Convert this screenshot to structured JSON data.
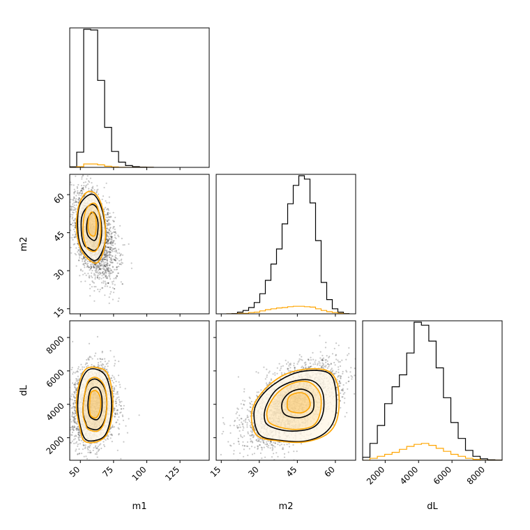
{
  "colors": {
    "primary": "#000000",
    "secondary": "#ffa500",
    "background": "#ffffff"
  },
  "chart_data": {
    "type": "corner",
    "parameters": [
      "m1",
      "m2",
      "dL"
    ],
    "axes": {
      "m1": {
        "label": "m1",
        "lim": [
          42,
          147
        ],
        "ticks": [
          50,
          75,
          100,
          125
        ],
        "tick_labels": [
          "50",
          "75",
          "100",
          "125"
        ]
      },
      "m2": {
        "label": "m2",
        "lim": [
          13,
          68
        ],
        "ticks": [
          15,
          30,
          45,
          60
        ],
        "tick_labels": [
          "15",
          "30",
          "45",
          "60"
        ]
      },
      "dL": {
        "label": "dL",
        "lim": [
          650,
          9000
        ],
        "ticks": [
          2000,
          4000,
          6000,
          8000
        ],
        "tick_labels": [
          "2000",
          "4000",
          "6000",
          "8000"
        ]
      }
    },
    "series": [
      {
        "color": "#000000"
      },
      {
        "color": "#ffa500"
      }
    ],
    "histograms": {
      "m1": {
        "bin_edges": [
          42,
          47.25,
          52.5,
          57.75,
          63,
          68.25,
          73.5,
          78.75,
          84,
          89.25,
          94.5,
          99.75,
          105
        ],
        "black": [
          4,
          110,
          1000,
          995,
          630,
          290,
          115,
          38,
          13,
          5,
          2,
          1
        ],
        "orange": [
          0,
          5,
          25,
          25,
          18,
          8,
          3,
          1,
          0,
          0,
          0,
          0
        ]
      },
      "m2": {
        "bin_edges": [
          17,
          19.2,
          21.4,
          23.6,
          25.8,
          28,
          30.2,
          32.4,
          34.6,
          36.8,
          39,
          41.2,
          43.4,
          45.6,
          47.8,
          50,
          52.2,
          54.4,
          56.6,
          58.8,
          61,
          63.2,
          65.4
        ],
        "black": [
          0,
          0.5,
          4,
          8,
          15,
          27,
          48,
          80,
          119,
          155,
          215,
          263,
          307,
          330,
          322,
          265,
          175,
          75,
          34,
          12,
          4,
          0.5
        ],
        "orange": [
          0,
          0,
          1,
          1,
          3,
          4,
          7,
          10,
          12,
          14,
          15,
          17,
          18,
          18,
          17,
          16,
          12,
          8,
          5,
          3,
          1,
          0
        ]
      },
      "dL": {
        "bin_edges": [
          650,
          1090,
          1530,
          1970,
          2410,
          2850,
          3290,
          3730,
          4170,
          4610,
          5050,
          5490,
          5930,
          6370,
          6810,
          7250,
          7690,
          8130,
          8570,
          9010
        ],
        "black": [
          3,
          17,
          35,
          57,
          74,
          86,
          108,
          139,
          136,
          120,
          93,
          63,
          38,
          22,
          10,
          4,
          1.5,
          0.5,
          0.2
        ],
        "orange": [
          0,
          2,
          4,
          6,
          8,
          11,
          14,
          16,
          17,
          15,
          12,
          9,
          6,
          4,
          2,
          1,
          0,
          0,
          0
        ]
      }
    },
    "scatter": {
      "m2_vs_m1": {
        "x_mean": 60,
        "x_sd": 8,
        "y_mean": 44,
        "y_sd": 8.5,
        "rho": -0.45,
        "count": 2600
      },
      "dL_vs_m1": {
        "x_mean": 60,
        "x_sd": 8,
        "y_mean": 3900,
        "y_sd": 1150,
        "rho": 0.1,
        "count": 2600
      },
      "dL_vs_m2": {
        "x_mean": 43,
        "x_sd": 9,
        "y_mean": 4000,
        "y_sd": 1200,
        "rho": 0.55,
        "count": 3000
      }
    },
    "contours": {
      "m2_vs_m1": {
        "black": [
          [
            [
              55,
              36
            ],
            [
              61,
              34
            ],
            [
              66,
              37
            ],
            [
              69,
              43
            ],
            [
              68,
              50
            ],
            [
              65,
              56
            ],
            [
              60,
              60
            ],
            [
              54,
              59
            ],
            [
              49,
              55
            ],
            [
              48,
              47
            ],
            [
              50,
              40
            ]
          ],
          [
            [
              56,
              39
            ],
            [
              61,
              38
            ],
            [
              65,
              41
            ],
            [
              66,
              47
            ],
            [
              64,
              53
            ],
            [
              60,
              56
            ],
            [
              55,
              55
            ],
            [
              51,
              51
            ],
            [
              51,
              44
            ],
            [
              53,
              40
            ]
          ],
          [
            [
              57,
              43
            ],
            [
              61,
              42
            ],
            [
              63,
              45
            ],
            [
              63,
              50
            ],
            [
              60,
              53
            ],
            [
              57,
              52
            ],
            [
              55,
              49
            ],
            [
              55,
              45
            ]
          ]
        ],
        "orange": [
          [
            [
              55,
              35
            ],
            [
              62,
              33
            ],
            [
              67,
              37
            ],
            [
              69,
              45
            ],
            [
              67,
              54
            ],
            [
              62,
              60
            ],
            [
              55,
              61
            ],
            [
              49,
              56
            ],
            [
              47,
              47
            ],
            [
              50,
              39
            ]
          ],
          [
            [
              57,
              38
            ],
            [
              62,
              38
            ],
            [
              65,
              43
            ],
            [
              65,
              50
            ],
            [
              62,
              56
            ],
            [
              57,
              56
            ],
            [
              53,
              52
            ],
            [
              52,
              45
            ],
            [
              54,
              40
            ]
          ],
          [
            [
              58,
              44
            ],
            [
              61,
              44
            ],
            [
              62,
              48
            ],
            [
              61,
              52
            ],
            [
              58,
              53
            ],
            [
              56,
              50
            ],
            [
              56,
              46
            ]
          ]
        ]
      },
      "dL_vs_m1": {
        "black": [
          [
            [
              54,
              1900
            ],
            [
              62,
              1850
            ],
            [
              69,
              2200
            ],
            [
              73,
              3300
            ],
            [
              73,
              4600
            ],
            [
              69,
              5700
            ],
            [
              62,
              6100
            ],
            [
              55,
              6000
            ],
            [
              50,
              5200
            ],
            [
              48,
              3900
            ],
            [
              50,
              2700
            ]
          ],
          [
            [
              56,
              2600
            ],
            [
              63,
              2500
            ],
            [
              68,
              3000
            ],
            [
              70,
              4000
            ],
            [
              68,
              5000
            ],
            [
              62,
              5500
            ],
            [
              56,
              5300
            ],
            [
              53,
              4500
            ],
            [
              52,
              3500
            ],
            [
              54,
              2900
            ]
          ],
          [
            [
              58,
              3200
            ],
            [
              63,
              3100
            ],
            [
              66,
              3600
            ],
            [
              66,
              4500
            ],
            [
              63,
              5000
            ],
            [
              58,
              4900
            ],
            [
              56,
              4300
            ],
            [
              56,
              3600
            ]
          ]
        ],
        "orange": [
          [
            [
              53,
              1800
            ],
            [
              62,
              1750
            ],
            [
              70,
              2200
            ],
            [
              74,
              3400
            ],
            [
              74,
              4700
            ],
            [
              70,
              5900
            ],
            [
              62,
              6200
            ],
            [
              54,
              6100
            ],
            [
              49,
              5200
            ],
            [
              47,
              3800
            ],
            [
              50,
              2500
            ]
          ],
          [
            [
              56,
              2500
            ],
            [
              63,
              2400
            ],
            [
              68,
              2900
            ],
            [
              70,
              4000
            ],
            [
              68,
              5100
            ],
            [
              62,
              5600
            ],
            [
              56,
              5400
            ],
            [
              53,
              4500
            ],
            [
              52,
              3400
            ],
            [
              54,
              2800
            ]
          ],
          [
            [
              58,
              3300
            ],
            [
              62,
              3200
            ],
            [
              65,
              3700
            ],
            [
              65,
              4400
            ],
            [
              62,
              4800
            ],
            [
              58,
              4700
            ],
            [
              57,
              4100
            ],
            [
              57,
              3600
            ]
          ]
        ]
      },
      "dL_vs_m2": {
        "black": [
          [
            [
              30,
              2200
            ],
            [
              38,
              1850
            ],
            [
              48,
              1800
            ],
            [
              56,
              2300
            ],
            [
              60,
              3300
            ],
            [
              60,
              5000
            ],
            [
              57,
              5900
            ],
            [
              48,
              6000
            ],
            [
              40,
              5600
            ],
            [
              32,
              4700
            ],
            [
              28,
              3600
            ]
          ],
          [
            [
              34,
              2700
            ],
            [
              42,
              2400
            ],
            [
              51,
              2600
            ],
            [
              55,
              3400
            ],
            [
              55,
              4700
            ],
            [
              51,
              5400
            ],
            [
              44,
              5400
            ],
            [
              37,
              4900
            ],
            [
              33,
              4000
            ],
            [
              32,
              3200
            ]
          ],
          [
            [
              40,
              3400
            ],
            [
              46,
              3200
            ],
            [
              51,
              3600
            ],
            [
              51,
              4500
            ],
            [
              47,
              4900
            ],
            [
              42,
              4700
            ],
            [
              39,
              4100
            ]
          ]
        ],
        "orange": [
          [
            [
              29,
              2150
            ],
            [
              38,
              1800
            ],
            [
              48,
              1750
            ],
            [
              57,
              2250
            ],
            [
              61,
              3300
            ],
            [
              61,
              5100
            ],
            [
              57,
              6000
            ],
            [
              48,
              6100
            ],
            [
              39,
              5700
            ],
            [
              31,
              4700
            ],
            [
              27,
              3500
            ]
          ],
          [
            [
              35,
              2800
            ],
            [
              43,
              2500
            ],
            [
              51,
              2700
            ],
            [
              54,
              3500
            ],
            [
              54,
              4600
            ],
            [
              50,
              5300
            ],
            [
              44,
              5300
            ],
            [
              38,
              4800
            ],
            [
              34,
              4000
            ],
            [
              33,
              3300
            ]
          ],
          [
            [
              42,
              3600
            ],
            [
              47,
              3500
            ],
            [
              50,
              3900
            ],
            [
              49,
              4500
            ],
            [
              46,
              4700
            ],
            [
              42,
              4500
            ],
            [
              41,
              4000
            ]
          ]
        ]
      }
    }
  }
}
